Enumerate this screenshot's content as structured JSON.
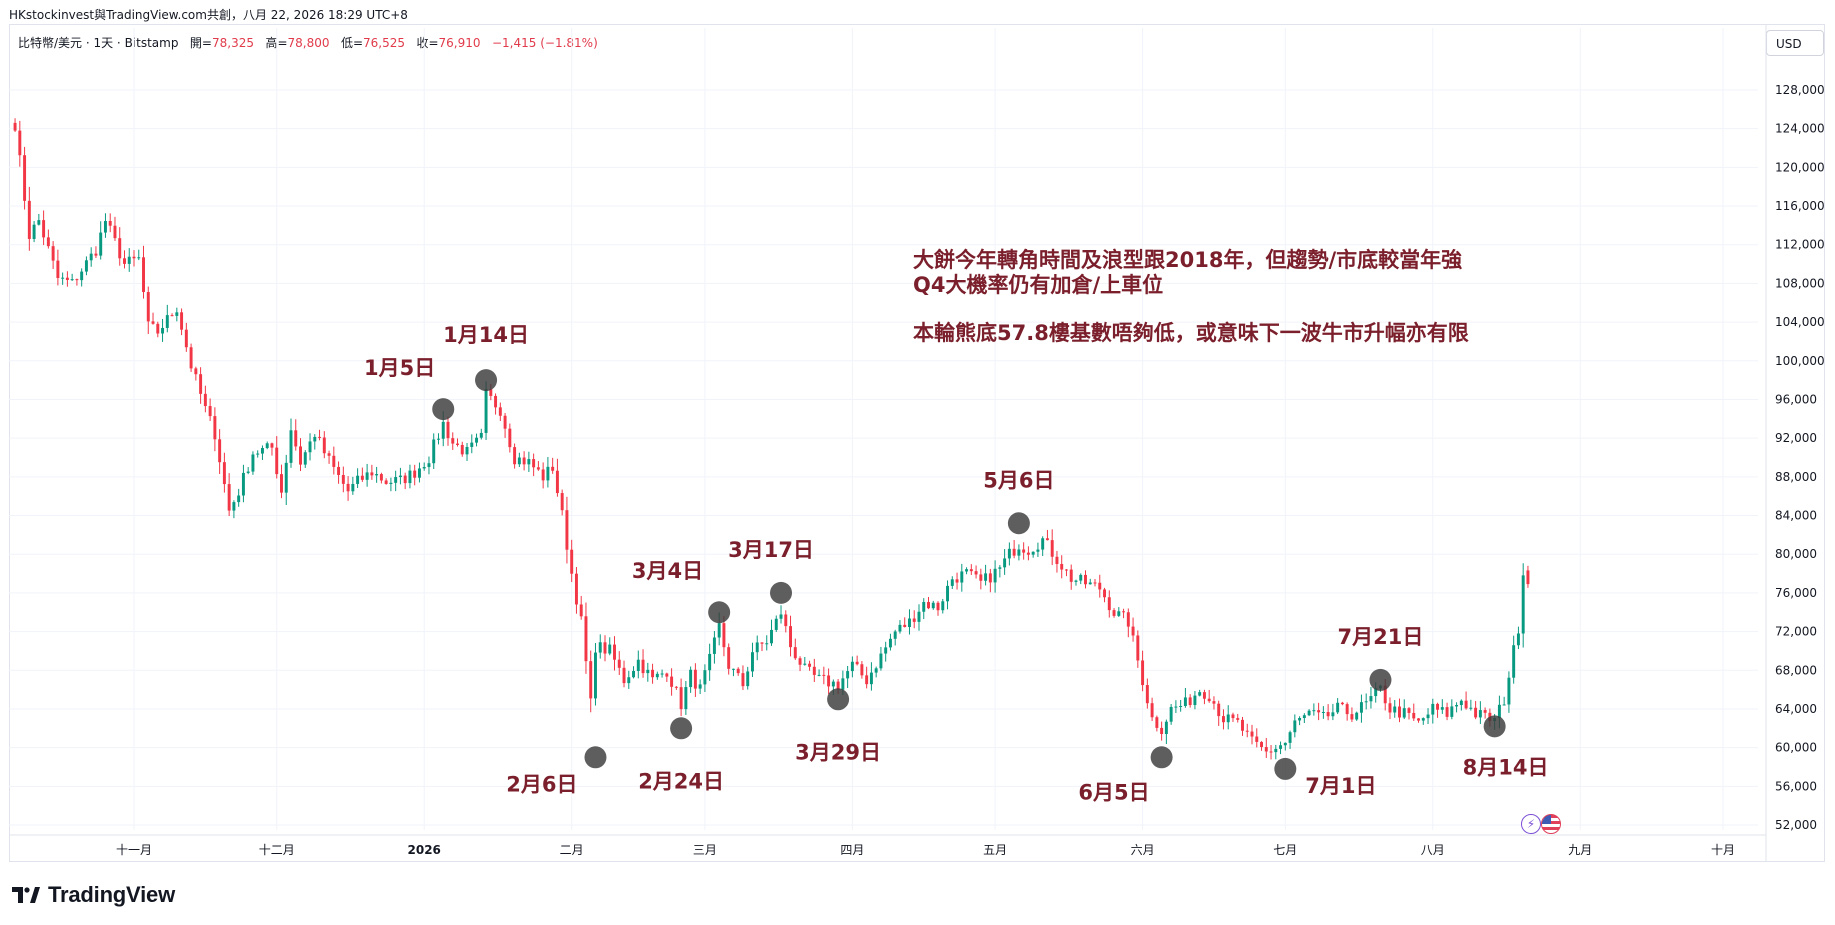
{
  "header": {
    "top_text": "HKstockinvest與TradingView.com共創，八月 22, 2026 18:29 UTC+8",
    "symbol": "比特幣/美元 · 1天 · Bitstamp",
    "open_label": "開=",
    "open_value": "78,325",
    "high_label": "高=",
    "high_value": "78,800",
    "low_label": "低=",
    "low_value": "76,525",
    "close_label": "收=",
    "close_value": "76,910",
    "change": "−1,415 (−1.81%)",
    "currency": "USD"
  },
  "notes": {
    "line1": "大餅今年轉角時間及浪型跟2018年，但趨勢/市底較當年強",
    "line2": "Q4大機率仍有加倉/上車位",
    "line3": "本輪熊底57.8樓基數唔夠低，或意味下一波牛市升幅亦有限"
  },
  "logo": {
    "text": "TradingView"
  },
  "colors": {
    "up": "#089981",
    "down": "#f23645",
    "annotation": "#7a1f2b",
    "marker": "#3a3a3a",
    "grid": "#f0f3fa",
    "axis_text": "#131722"
  },
  "chart_data": {
    "type": "candlestick",
    "title": "比特幣/美元 · 1天 · Bitstamp",
    "ylabel": "USD",
    "ylim": [
      50000,
      132000
    ],
    "y_ticks": [
      52000,
      56000,
      60000,
      64000,
      68000,
      72000,
      76000,
      80000,
      84000,
      88000,
      92000,
      96000,
      100000,
      104000,
      108000,
      112000,
      116000,
      120000,
      124000,
      128000
    ],
    "x_ticks": [
      {
        "date": "2025-11-01",
        "label": "十一月"
      },
      {
        "date": "2025-12-01",
        "label": "十二月"
      },
      {
        "date": "2026-01-01",
        "label": "2026"
      },
      {
        "date": "2026-02-01",
        "label": "二月"
      },
      {
        "date": "2026-03-01",
        "label": "三月"
      },
      {
        "date": "2026-04-01",
        "label": "四月"
      },
      {
        "date": "2026-05-01",
        "label": "五月"
      },
      {
        "date": "2026-06-01",
        "label": "六月"
      },
      {
        "date": "2026-07-01",
        "label": "七月"
      },
      {
        "date": "2026-08-01",
        "label": "八月"
      },
      {
        "date": "2026-09-01",
        "label": "九月"
      },
      {
        "date": "2026-10-01",
        "label": "十月"
      }
    ],
    "x_range": [
      "2025-10-07",
      "2026-10-10"
    ],
    "close_path": [
      [
        "2025-10-07",
        124500
      ],
      [
        "2025-10-10",
        113000
      ],
      [
        "2025-10-12",
        114500
      ],
      [
        "2025-10-16",
        108500
      ],
      [
        "2025-10-19",
        108000
      ],
      [
        "2025-10-24",
        111500
      ],
      [
        "2025-10-26",
        114500
      ],
      [
        "2025-10-30",
        110000
      ],
      [
        "2025-11-02",
        110500
      ],
      [
        "2025-11-04",
        103500
      ],
      [
        "2025-11-06",
        103000
      ],
      [
        "2025-11-10",
        105500
      ],
      [
        "2025-11-13",
        99500
      ],
      [
        "2025-11-16",
        95000
      ],
      [
        "2025-11-18",
        92500
      ],
      [
        "2025-11-21",
        84500
      ],
      [
        "2025-11-23",
        86500
      ],
      [
        "2025-11-26",
        90500
      ],
      [
        "2025-11-30",
        91000
      ],
      [
        "2025-12-02",
        86500
      ],
      [
        "2025-12-04",
        93000
      ],
      [
        "2025-12-06",
        89500
      ],
      [
        "2025-12-09",
        92500
      ],
      [
        "2025-12-11",
        90500
      ],
      [
        "2025-12-14",
        88000
      ],
      [
        "2025-12-16",
        86500
      ],
      [
        "2025-12-18",
        87500
      ],
      [
        "2025-12-21",
        88500
      ],
      [
        "2025-12-24",
        87500
      ],
      [
        "2025-12-27",
        87600
      ],
      [
        "2025-12-30",
        88500
      ],
      [
        "2026-01-02",
        90000
      ],
      [
        "2026-01-05",
        93500
      ],
      [
        "2026-01-07",
        91500
      ],
      [
        "2026-01-10",
        90500
      ],
      [
        "2026-01-13",
        92000
      ],
      [
        "2026-01-14",
        96500
      ],
      [
        "2026-01-17",
        95000
      ],
      [
        "2026-01-20",
        90000
      ],
      [
        "2026-01-23",
        89500
      ],
      [
        "2026-01-26",
        88000
      ],
      [
        "2026-01-28",
        89000
      ],
      [
        "2026-01-30",
        84000
      ],
      [
        "2026-02-01",
        78000
      ],
      [
        "2026-02-03",
        73000
      ],
      [
        "2026-02-05",
        64500
      ],
      [
        "2026-02-06",
        70500
      ],
      [
        "2026-02-09",
        70000
      ],
      [
        "2026-02-12",
        67000
      ],
      [
        "2026-02-15",
        69000
      ],
      [
        "2026-02-18",
        67000
      ],
      [
        "2026-02-21",
        68000
      ],
      [
        "2026-02-24",
        64500
      ],
      [
        "2026-02-26",
        67500
      ],
      [
        "2026-02-28",
        66000
      ],
      [
        "2026-03-02",
        69000
      ],
      [
        "2026-03-04",
        72500
      ],
      [
        "2026-03-06",
        68500
      ],
      [
        "2026-03-09",
        66500
      ],
      [
        "2026-03-11",
        70000
      ],
      [
        "2026-03-14",
        71000
      ],
      [
        "2026-03-17",
        74000
      ],
      [
        "2026-03-19",
        70500
      ],
      [
        "2026-03-22",
        68000
      ],
      [
        "2026-03-25",
        67000
      ],
      [
        "2026-03-29",
        66500
      ],
      [
        "2026-04-01",
        68500
      ],
      [
        "2026-04-04",
        67000
      ],
      [
        "2026-04-07",
        69500
      ],
      [
        "2026-04-10",
        72000
      ],
      [
        "2026-04-13",
        73000
      ],
      [
        "2026-04-16",
        75000
      ],
      [
        "2026-04-19",
        74500
      ],
      [
        "2026-04-22",
        77500
      ],
      [
        "2026-04-25",
        78000
      ],
      [
        "2026-04-28",
        77000
      ],
      [
        "2026-05-02",
        78500
      ],
      [
        "2026-05-04",
        80000
      ],
      [
        "2026-05-06",
        81000
      ],
      [
        "2026-05-08",
        80500
      ],
      [
        "2026-05-11",
        81500
      ],
      [
        "2026-05-14",
        79500
      ],
      [
        "2026-05-17",
        77500
      ],
      [
        "2026-05-20",
        77000
      ],
      [
        "2026-05-23",
        76500
      ],
      [
        "2026-05-26",
        74000
      ],
      [
        "2026-05-29",
        73000
      ],
      [
        "2026-06-01",
        67000
      ],
      [
        "2026-06-03",
        63000
      ],
      [
        "2026-06-05",
        62000
      ],
      [
        "2026-06-07",
        64000
      ],
      [
        "2026-06-10",
        64500
      ],
      [
        "2026-06-13",
        66000
      ],
      [
        "2026-06-15",
        65500
      ],
      [
        "2026-06-18",
        63000
      ],
      [
        "2026-06-21",
        62500
      ],
      [
        "2026-06-24",
        60500
      ],
      [
        "2026-06-27",
        59500
      ],
      [
        "2026-07-01",
        60500
      ],
      [
        "2026-07-03",
        62500
      ],
      [
        "2026-07-06",
        63500
      ],
      [
        "2026-07-09",
        63000
      ],
      [
        "2026-07-12",
        64000
      ],
      [
        "2026-07-15",
        63500
      ],
      [
        "2026-07-18",
        64500
      ],
      [
        "2026-07-21",
        66000
      ],
      [
        "2026-07-23",
        64000
      ],
      [
        "2026-07-26",
        63500
      ],
      [
        "2026-07-29",
        62500
      ],
      [
        "2026-08-01",
        64000
      ],
      [
        "2026-08-04",
        63500
      ],
      [
        "2026-08-07",
        65000
      ],
      [
        "2026-08-10",
        63500
      ],
      [
        "2026-08-14",
        62800
      ],
      [
        "2026-08-16",
        65000
      ],
      [
        "2026-08-18",
        70000
      ],
      [
        "2026-08-19",
        72500
      ],
      [
        "2026-08-20",
        78325
      ],
      [
        "2026-08-21",
        76910
      ]
    ],
    "last_candle": {
      "date": "2026-08-21",
      "open": 78325,
      "high": 78800,
      "low": 76525,
      "close": 76910
    },
    "annotations": [
      {
        "label": "1月5日",
        "date": "2026-01-05",
        "price": 95000
      },
      {
        "label": "1月14日",
        "date": "2026-01-14",
        "price": 98000
      },
      {
        "label": "2月6日",
        "date": "2026-02-06",
        "price": 59000
      },
      {
        "label": "2月24日",
        "date": "2026-02-24",
        "price": 62000
      },
      {
        "label": "3月4日",
        "date": "2026-03-04",
        "price": 74000
      },
      {
        "label": "3月17日",
        "date": "2026-03-17",
        "price": 76000
      },
      {
        "label": "3月29日",
        "date": "2026-03-29",
        "price": 65000
      },
      {
        "label": "5月6日",
        "date": "2026-05-06",
        "price": 83200
      },
      {
        "label": "6月5日",
        "date": "2026-06-05",
        "price": 59000
      },
      {
        "label": "7月1日",
        "date": "2026-07-01",
        "price": 57800
      },
      {
        "label": "7月21日",
        "date": "2026-07-21",
        "price": 67000
      },
      {
        "label": "8月14日",
        "date": "2026-08-14",
        "price": 62200
      }
    ]
  }
}
